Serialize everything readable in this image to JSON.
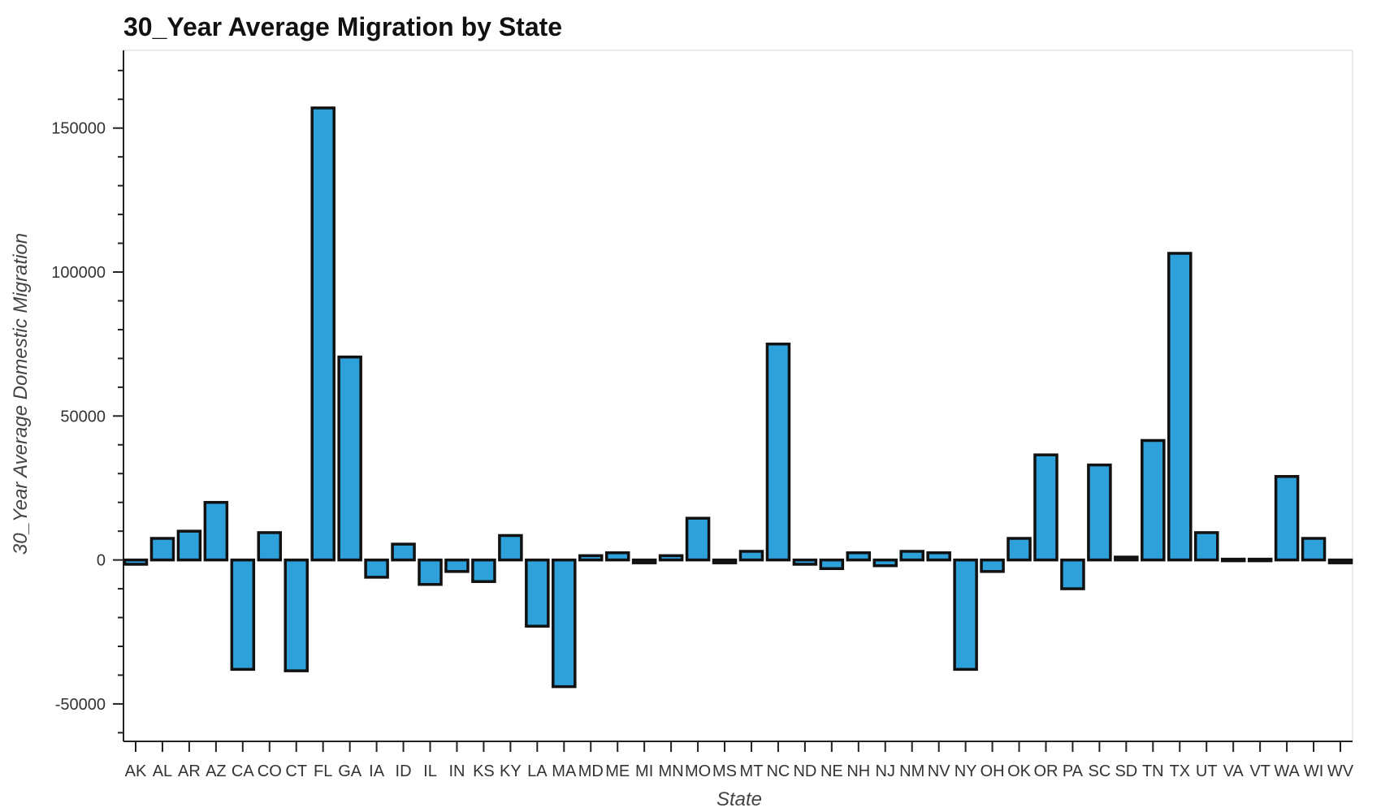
{
  "chart_data": {
    "type": "bar",
    "title": "30_Year Average Migration by State",
    "xlabel": "State",
    "ylabel": "30_Year Average Domestic Migration",
    "ylim": [
      -63000,
      177000
    ],
    "yticks": [
      -50000,
      0,
      50000,
      100000,
      150000
    ],
    "grid": false,
    "bar_color": "#2ea1da",
    "categories": [
      "AK",
      "AL",
      "AR",
      "AZ",
      "CA",
      "CO",
      "CT",
      "FL",
      "GA",
      "IA",
      "ID",
      "IL",
      "IN",
      "KS",
      "KY",
      "LA",
      "MA",
      "MD",
      "ME",
      "MI",
      "MN",
      "MO",
      "MS",
      "MT",
      "NC",
      "ND",
      "NE",
      "NH",
      "NJ",
      "NM",
      "NV",
      "NY",
      "OH",
      "OK",
      "OR",
      "PA",
      "SC",
      "SD",
      "TN",
      "TX",
      "UT",
      "VA",
      "VT",
      "WA",
      "WI",
      "WV"
    ],
    "values": [
      -1500,
      7500,
      10000,
      20000,
      -38000,
      9500,
      -38500,
      157000,
      70500,
      -6000,
      5500,
      -8500,
      -4000,
      -7500,
      8500,
      -23000,
      -44000,
      1500,
      2500,
      -1000,
      1500,
      14500,
      -1000,
      3000,
      75000,
      -1500,
      -3000,
      2500,
      -2000,
      3000,
      2500,
      -38000,
      -4000,
      7500,
      36500,
      -10000,
      33000,
      1000,
      41500,
      106500,
      9500,
      500,
      500,
      29000,
      7500,
      -1000
    ]
  }
}
